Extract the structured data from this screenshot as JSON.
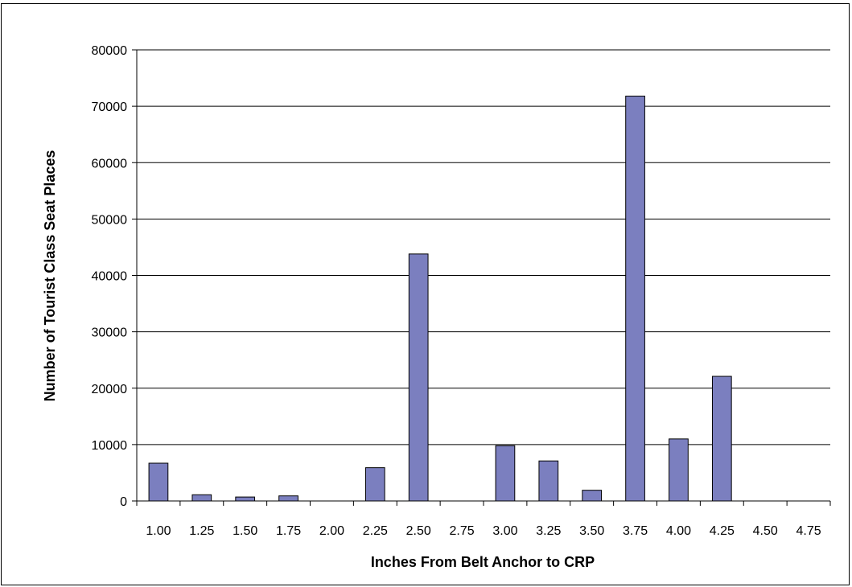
{
  "chart_data": {
    "type": "bar",
    "title": "",
    "xlabel": "Inches From Belt Anchor to CRP",
    "ylabel": "Number of Tourist Class Seat Places",
    "categories": [
      "1.00",
      "1.25",
      "1.50",
      "1.75",
      "2.00",
      "2.25",
      "2.50",
      "2.75",
      "3.00",
      "3.25",
      "3.50",
      "3.75",
      "4.00",
      "4.25",
      "4.50",
      "4.75"
    ],
    "values": [
      6700,
      1100,
      700,
      900,
      0,
      5900,
      43800,
      0,
      9800,
      7100,
      1900,
      71800,
      11000,
      22100,
      0,
      0
    ],
    "ylim": [
      0,
      80000
    ],
    "yticks": [
      0,
      10000,
      20000,
      30000,
      40000,
      50000,
      60000,
      70000,
      80000
    ],
    "grid": true,
    "legend": "none",
    "colors": {
      "bar_fill": "#7b7fbf",
      "bar_stroke": "#000000",
      "grid": "#000000",
      "axis": "#000000"
    }
  }
}
